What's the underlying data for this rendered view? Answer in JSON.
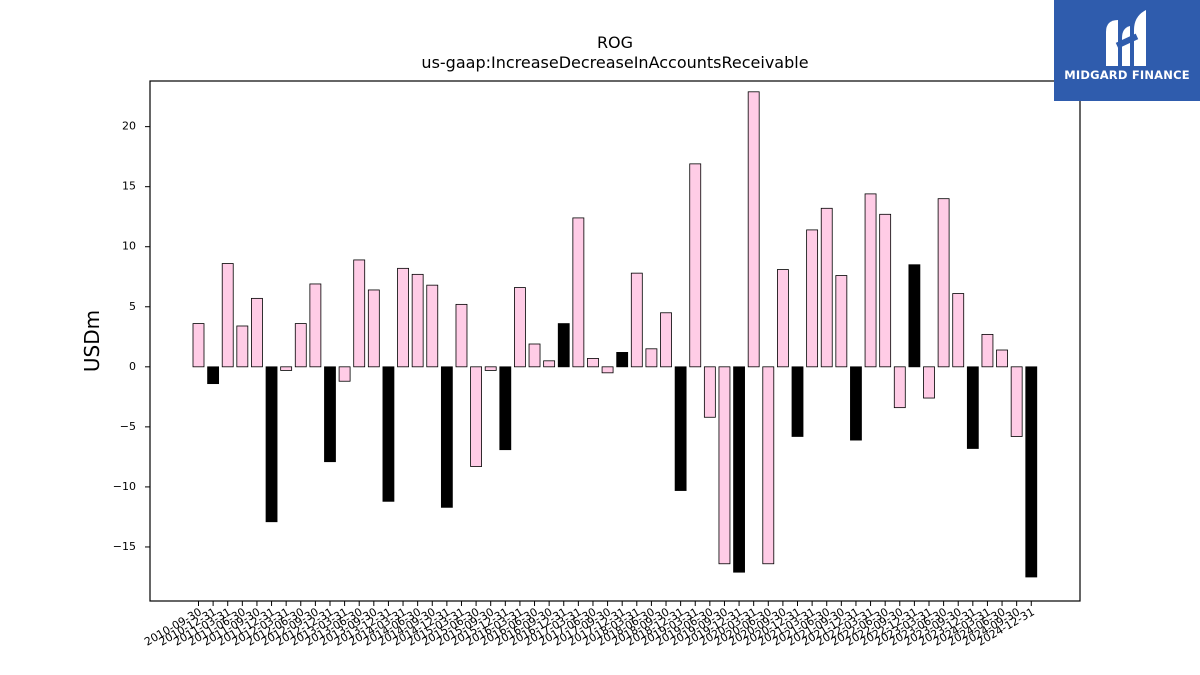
{
  "chart_data": {
    "type": "bar",
    "title": "ROG",
    "subtitle": "us-gaap:IncreaseDecreaseInAccountsReceivable",
    "ylabel": "USDm",
    "xlabel": "",
    "ylim": [
      -19.5,
      23.8
    ],
    "yticks": [
      -15,
      -10,
      -5,
      0,
      5,
      10,
      15,
      20
    ],
    "grid": false,
    "colors": {
      "quarter": "#ffcce6",
      "annual": "#000000",
      "edge": "#000000"
    },
    "categories": [
      "2010-09-30",
      "2010-12-31",
      "2011-03-31",
      "2011-06-30",
      "2011-09-30",
      "2011-12-31",
      "2012-03-31",
      "2012-06-30",
      "2012-09-30",
      "2012-12-31",
      "2013-03-31",
      "2013-06-30",
      "2013-09-30",
      "2013-12-31",
      "2014-03-31",
      "2014-06-30",
      "2014-09-30",
      "2014-12-31",
      "2015-03-31",
      "2015-06-30",
      "2015-09-30",
      "2015-12-31",
      "2016-03-31",
      "2016-06-30",
      "2016-09-30",
      "2016-12-31",
      "2017-03-31",
      "2017-06-30",
      "2017-09-30",
      "2017-12-31",
      "2018-03-31",
      "2018-06-30",
      "2018-09-30",
      "2018-12-31",
      "2019-03-31",
      "2019-06-30",
      "2019-09-30",
      "2019-12-31",
      "2020-03-31",
      "2020-06-30",
      "2020-09-30",
      "2020-12-31",
      "2021-03-31",
      "2021-06-30",
      "2021-09-30",
      "2021-12-31",
      "2022-03-31",
      "2022-06-30",
      "2022-09-30",
      "2022-12-31",
      "2023-03-31",
      "2023-06-30",
      "2023-09-30",
      "2023-12-31",
      "2024-03-31",
      "2024-06-30",
      "2024-09-30",
      "2024-12-31"
    ],
    "values": [
      3.6,
      -1.4,
      8.6,
      3.4,
      5.7,
      -12.9,
      -0.3,
      3.6,
      6.9,
      -7.9,
      -1.2,
      8.9,
      6.4,
      -11.2,
      8.2,
      7.7,
      6.8,
      -11.7,
      5.2,
      -8.3,
      -0.3,
      -6.9,
      6.6,
      1.9,
      0.5,
      3.6,
      12.4,
      0.7,
      -0.5,
      1.2,
      7.8,
      1.5,
      4.5,
      -10.3,
      16.9,
      -4.2,
      -16.4,
      -17.1,
      22.9,
      -16.4,
      8.1,
      -5.8,
      11.4,
      13.2,
      7.6,
      -6.1,
      14.4,
      12.7,
      -3.4,
      8.5,
      -2.6,
      14.0,
      6.1,
      -6.8,
      2.7,
      1.4,
      -5.8,
      -17.5
    ],
    "annual": [
      false,
      true,
      false,
      false,
      false,
      true,
      false,
      false,
      false,
      true,
      false,
      false,
      false,
      true,
      false,
      false,
      false,
      true,
      false,
      false,
      false,
      true,
      false,
      false,
      false,
      true,
      false,
      false,
      false,
      true,
      false,
      false,
      false,
      true,
      false,
      false,
      false,
      true,
      false,
      false,
      false,
      true,
      false,
      false,
      false,
      true,
      false,
      false,
      false,
      true,
      false,
      false,
      false,
      true,
      false,
      false,
      false,
      true
    ]
  },
  "logo": {
    "text": "MIDGARD FINANCE"
  }
}
